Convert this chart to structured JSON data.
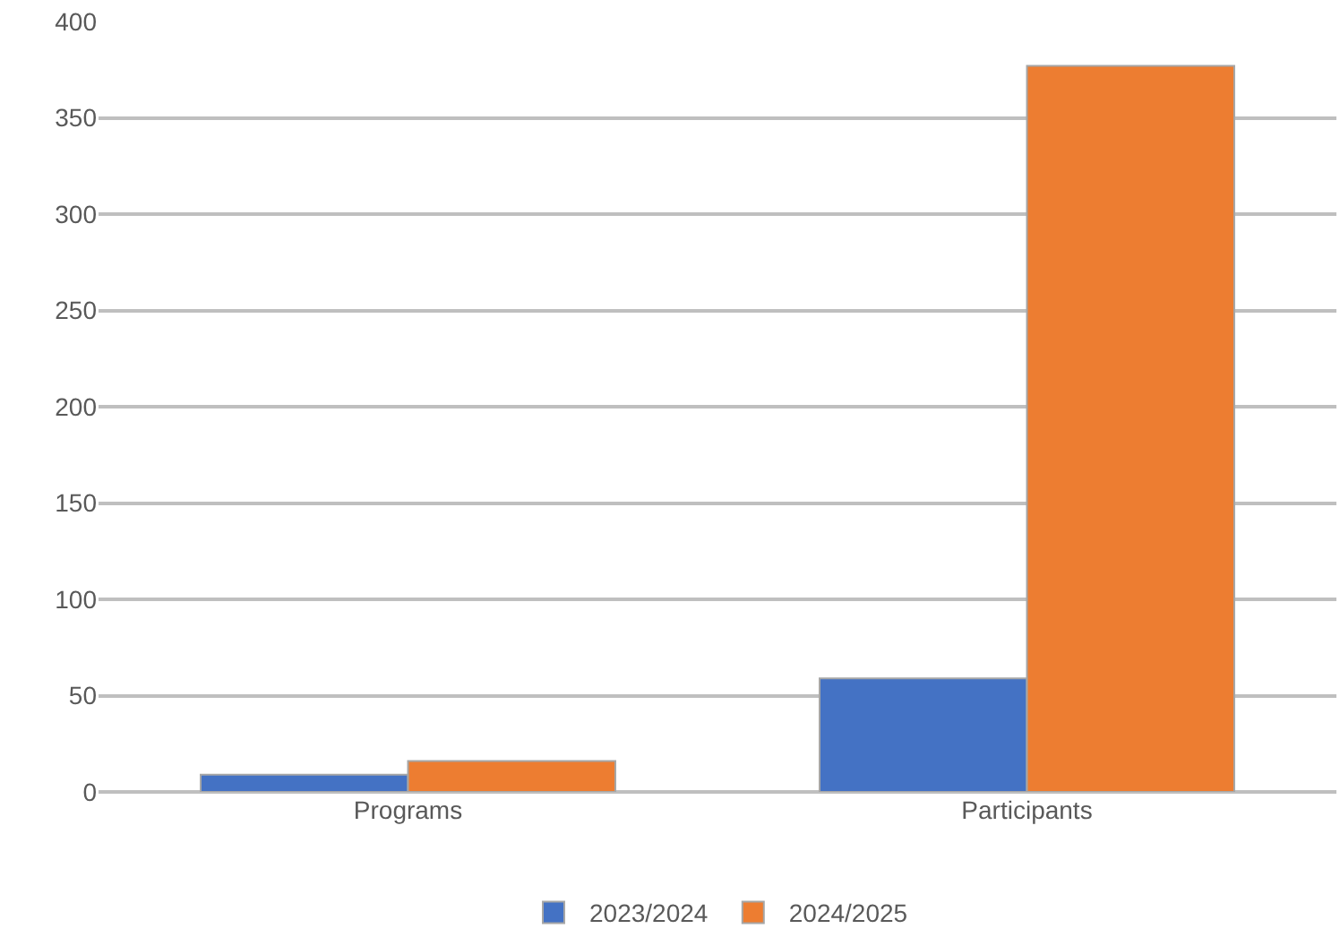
{
  "chart_data": {
    "type": "bar",
    "categories": [
      "Programs",
      "Participants"
    ],
    "series": [
      {
        "name": "2023/2024",
        "color": "#4472c4",
        "values": [
          9,
          59
        ]
      },
      {
        "name": "2024/2025",
        "color": "#ed7d31",
        "values": [
          16,
          377
        ]
      }
    ],
    "ylim": [
      0,
      400
    ],
    "yticks": [
      0,
      50,
      100,
      150,
      200,
      250,
      300,
      350,
      400
    ],
    "grid": "y",
    "legend": "bottom"
  }
}
